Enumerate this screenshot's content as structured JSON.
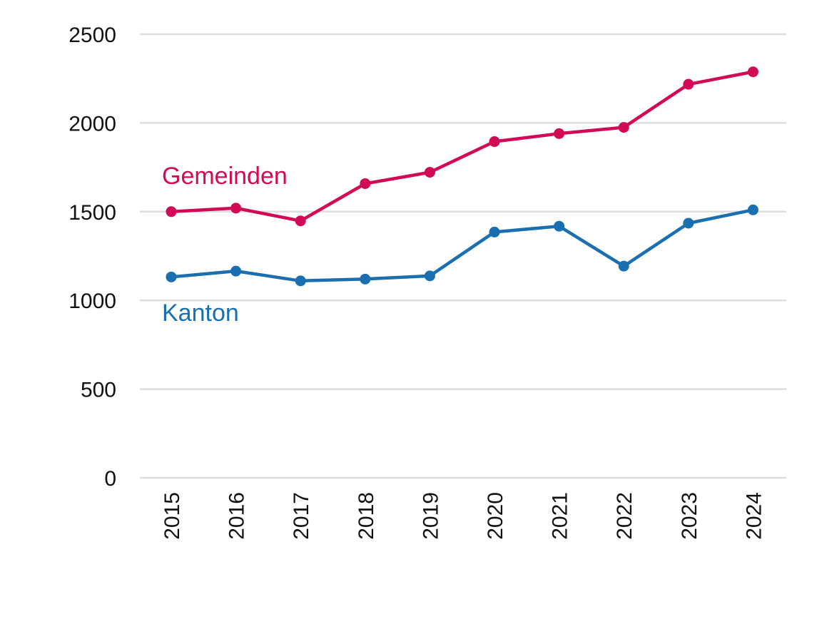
{
  "chart_data": {
    "type": "line",
    "title": "",
    "xlabel": "",
    "ylabel": "",
    "x": [
      "2015",
      "2016",
      "2017",
      "2018",
      "2019",
      "2020",
      "2021",
      "2022",
      "2023",
      "2024"
    ],
    "ylim": [
      0,
      2500
    ],
    "yticks": [
      "0",
      "500",
      "1000",
      "1500",
      "2000",
      "2500"
    ],
    "grid": true,
    "legend": "inline labels",
    "series": [
      {
        "name": "Gemeinden",
        "color": "#d20a55",
        "values": [
          1500,
          1520,
          1448,
          1658,
          1722,
          1895,
          1940,
          1975,
          2218,
          2288
        ]
      },
      {
        "name": "Kanton",
        "color": "#1a6fb1",
        "values": [
          1132,
          1165,
          1110,
          1120,
          1138,
          1385,
          1418,
          1193,
          1435,
          1510
        ]
      }
    ]
  }
}
